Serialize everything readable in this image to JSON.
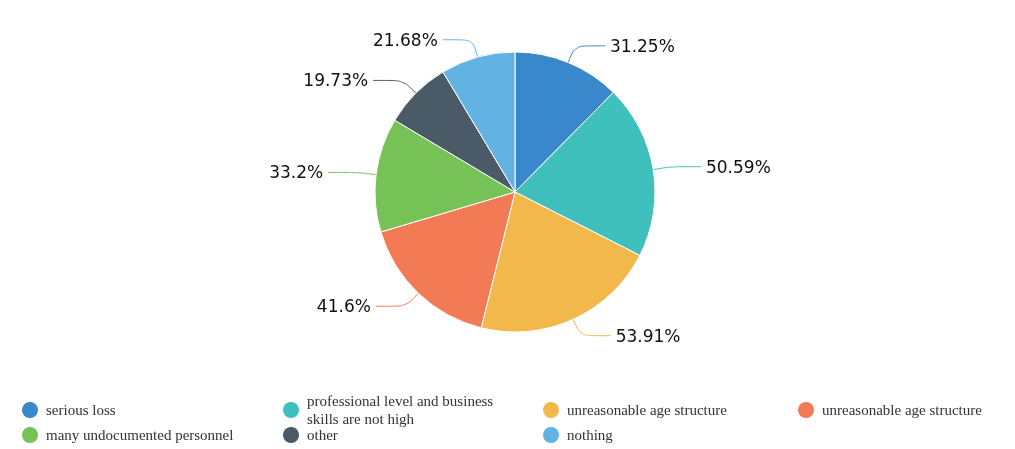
{
  "chart_data": {
    "type": "pie",
    "categories": [
      "serious loss",
      "professional level and business skills are not high",
      "unreasonable age structure",
      "unreasonable age structure",
      "many undocumented personnel",
      "other",
      "nothing"
    ],
    "values": [
      31.25,
      50.59,
      53.91,
      41.6,
      33.2,
      19.73,
      21.68
    ],
    "value_labels": [
      "31.25%",
      "50.59%",
      "53.91%",
      "41.6%",
      "33.2%",
      "19.73%",
      "21.68%"
    ],
    "colors": [
      "#3a88cc",
      "#40c0bc",
      "#f3b84c",
      "#f27a55",
      "#76c257",
      "#4a5a66",
      "#62b3e4"
    ],
    "legend": "bottom"
  }
}
